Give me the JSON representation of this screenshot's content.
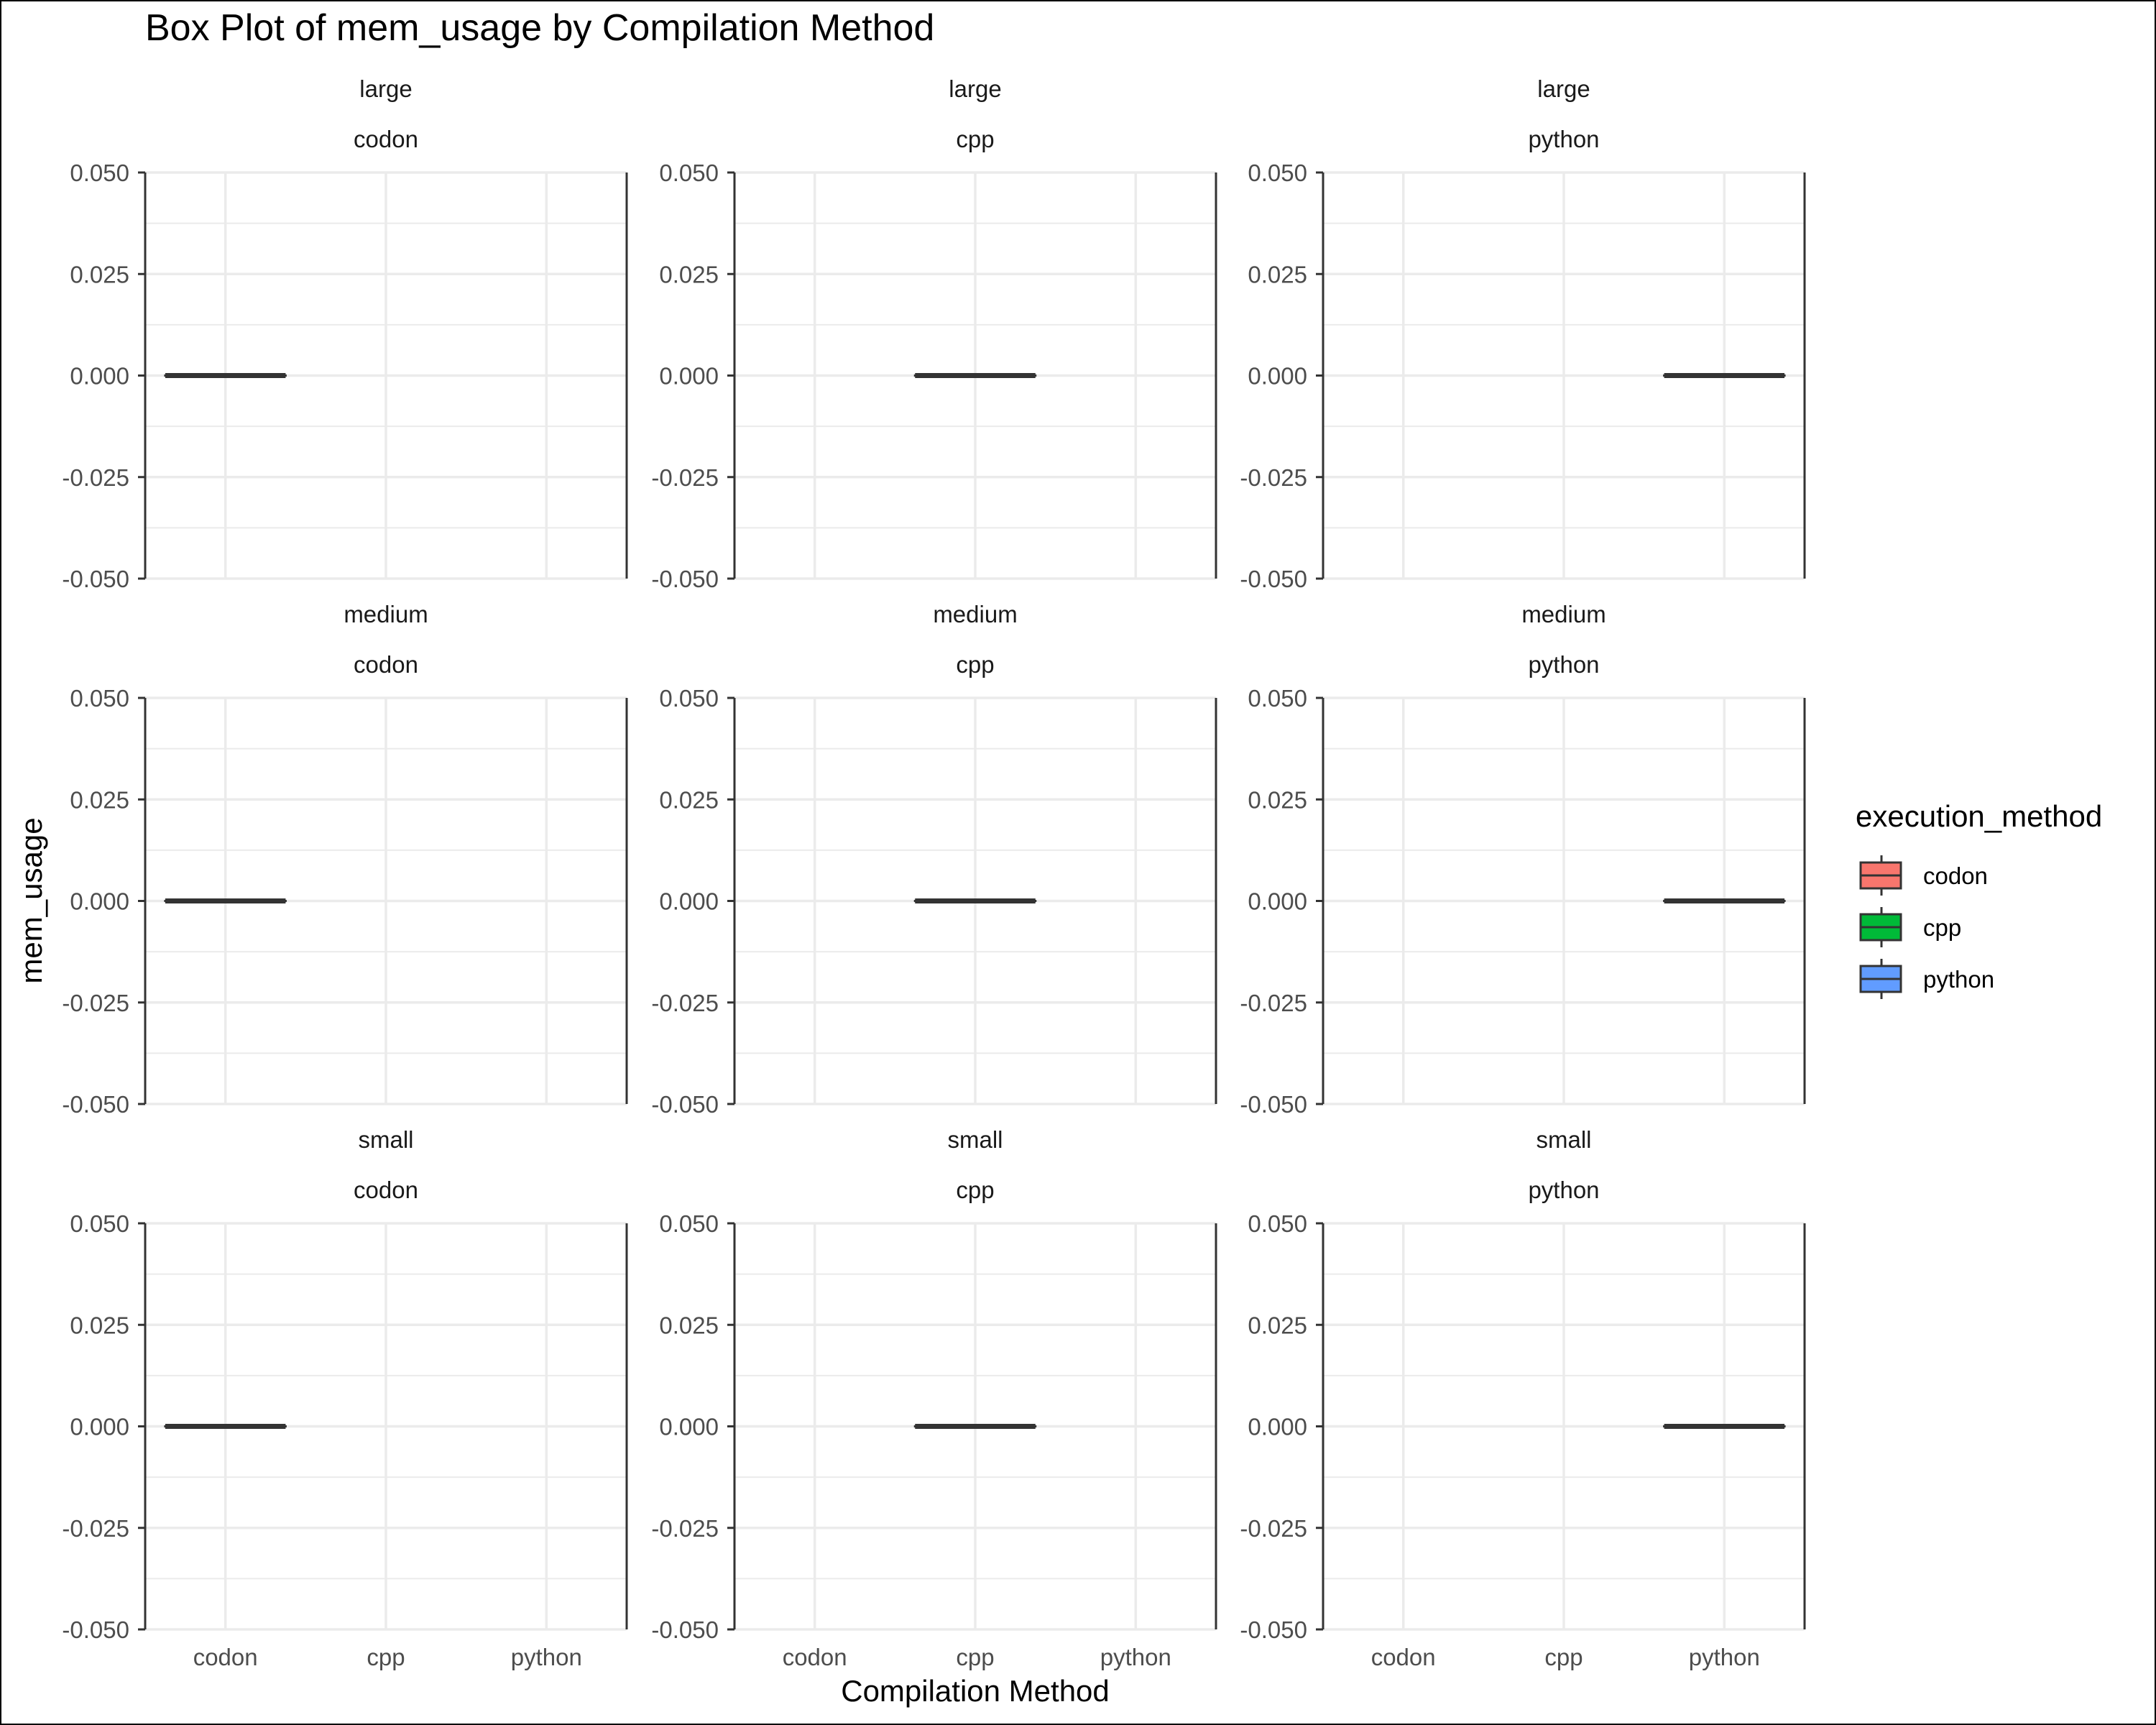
{
  "chart_data": {
    "type": "box",
    "title": "Box Plot of mem_usage by Compilation Method",
    "xlabel": "Compilation Method",
    "ylabel": "mem_usage",
    "categories": [
      "codon",
      "cpp",
      "python"
    ],
    "ylim": [
      -0.05,
      0.05
    ],
    "yticks": [
      -0.05,
      -0.025,
      0.0,
      0.025,
      0.05
    ],
    "ytick_labels": [
      "-0.050",
      "-0.025",
      "0.000",
      "0.025",
      "0.050"
    ],
    "grid": true,
    "legend": {
      "title": "execution_method",
      "placement": "right",
      "entries": [
        {
          "label": "codon",
          "color": "#F8766D"
        },
        {
          "label": "cpp",
          "color": "#00BA38"
        },
        {
          "label": "python",
          "color": "#619CFF"
        }
      ]
    },
    "facets": [
      {
        "row": "large",
        "col": "codon",
        "boxes": [
          {
            "category": "codon",
            "min": 0,
            "q1": 0,
            "median": 0,
            "q3": 0,
            "max": 0
          }
        ]
      },
      {
        "row": "large",
        "col": "cpp",
        "boxes": [
          {
            "category": "cpp",
            "min": 0,
            "q1": 0,
            "median": 0,
            "q3": 0,
            "max": 0
          }
        ]
      },
      {
        "row": "large",
        "col": "python",
        "boxes": [
          {
            "category": "python",
            "min": 0,
            "q1": 0,
            "median": 0,
            "q3": 0,
            "max": 0
          }
        ]
      },
      {
        "row": "medium",
        "col": "codon",
        "boxes": [
          {
            "category": "codon",
            "min": 0,
            "q1": 0,
            "median": 0,
            "q3": 0,
            "max": 0
          }
        ]
      },
      {
        "row": "medium",
        "col": "cpp",
        "boxes": [
          {
            "category": "cpp",
            "min": 0,
            "q1": 0,
            "median": 0,
            "q3": 0,
            "max": 0
          }
        ]
      },
      {
        "row": "medium",
        "col": "python",
        "boxes": [
          {
            "category": "python",
            "min": 0,
            "q1": 0,
            "median": 0,
            "q3": 0,
            "max": 0
          }
        ]
      },
      {
        "row": "small",
        "col": "codon",
        "boxes": [
          {
            "category": "codon",
            "min": 0,
            "q1": 0,
            "median": 0,
            "q3": 0,
            "max": 0
          }
        ]
      },
      {
        "row": "small",
        "col": "cpp",
        "boxes": [
          {
            "category": "cpp",
            "min": 0,
            "q1": 0,
            "median": 0,
            "q3": 0,
            "max": 0
          }
        ]
      },
      {
        "row": "small",
        "col": "python",
        "boxes": [
          {
            "category": "python",
            "min": 0,
            "q1": 0,
            "median": 0,
            "q3": 0,
            "max": 0
          }
        ]
      }
    ]
  },
  "colors": {
    "background": "#ffffff",
    "grid": "#EBEBEB",
    "axis_line": "#333333",
    "text": "#000000",
    "tick_text": "#4D4D4D",
    "box_line": "#333333"
  }
}
